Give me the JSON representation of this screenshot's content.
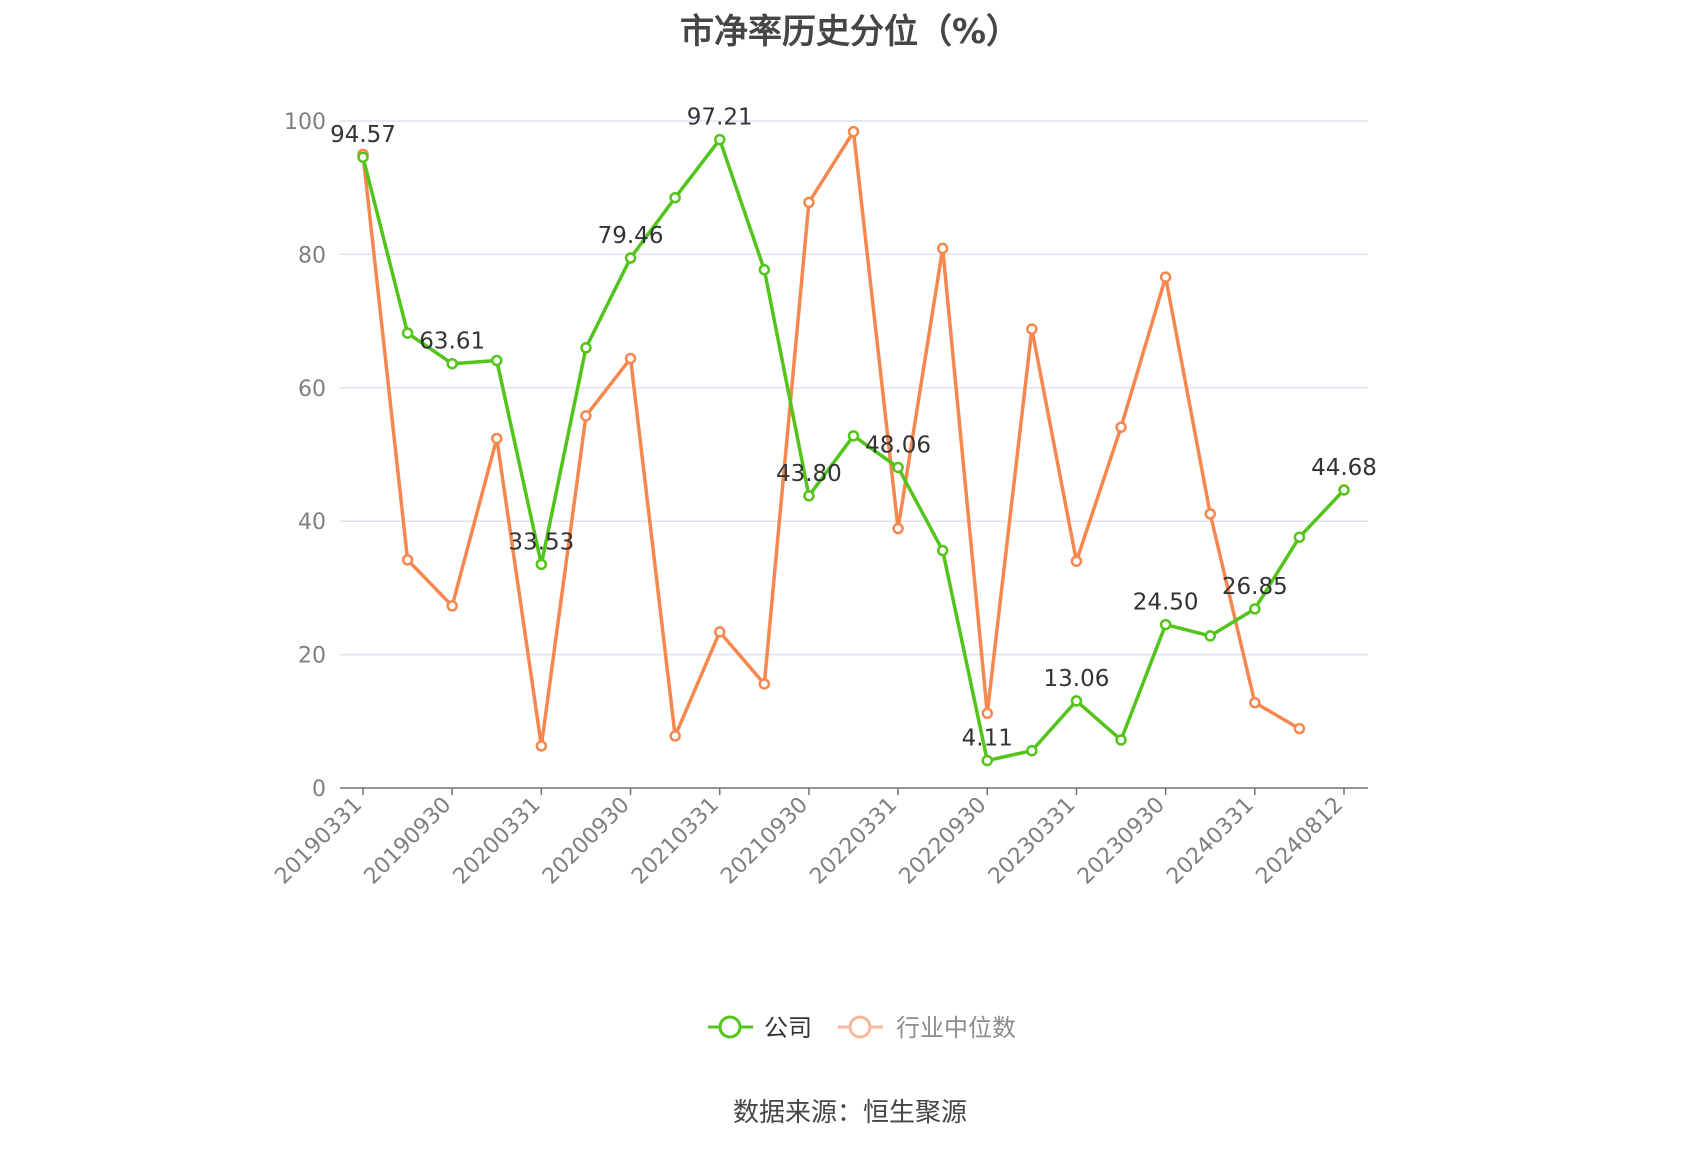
{
  "chart_data": {
    "type": "line",
    "title": "市净率历史分位（%）",
    "xlabel": "",
    "ylabel": "",
    "ylim": [
      0,
      100
    ],
    "yticks": [
      0,
      20,
      40,
      60,
      80,
      100
    ],
    "x": [
      "20190331",
      "20190630",
      "20190930",
      "20191231",
      "20200331",
      "20200630",
      "20200930",
      "20201231",
      "20210331",
      "20210630",
      "20210930",
      "20211231",
      "20220331",
      "20220630",
      "20220930",
      "20221231",
      "20230331",
      "20230630",
      "20230930",
      "20231231",
      "20240331",
      "20240630",
      "20240812"
    ],
    "xtick_labels": [
      "20190331",
      "20190930",
      "20200331",
      "20200930",
      "20210331",
      "20210930",
      "20220331",
      "20220930",
      "20230331",
      "20230930",
      "20240331",
      "20240812"
    ],
    "grid": true,
    "legend_position": "bottom-center",
    "series": [
      {
        "name": "公司",
        "color": "#52c41a",
        "values": [
          94.57,
          68.2,
          63.61,
          64.1,
          33.53,
          66.0,
          79.46,
          88.5,
          97.21,
          77.7,
          43.8,
          52.8,
          48.06,
          35.6,
          4.11,
          5.6,
          13.06,
          7.2,
          24.5,
          22.8,
          26.85,
          37.6,
          44.68
        ],
        "labels": {
          "0": "94.57",
          "2": "63.61",
          "4": "33.53",
          "6": "79.46",
          "8": "97.21",
          "10": "43.80",
          "12": "48.06",
          "14": "4.11",
          "16": "13.06",
          "18": "24.50",
          "20": "26.85",
          "22": "44.68"
        }
      },
      {
        "name": "行业中位数",
        "color": "#f5874f",
        "values": [
          95.0,
          34.2,
          27.3,
          52.4,
          6.3,
          55.8,
          64.4,
          7.8,
          23.4,
          15.6,
          87.8,
          98.4,
          38.9,
          80.9,
          11.2,
          68.8,
          34.0,
          54.1,
          76.6,
          41.1,
          12.8,
          8.9,
          null
        ]
      }
    ]
  },
  "source": "数据来源：恒生聚源"
}
